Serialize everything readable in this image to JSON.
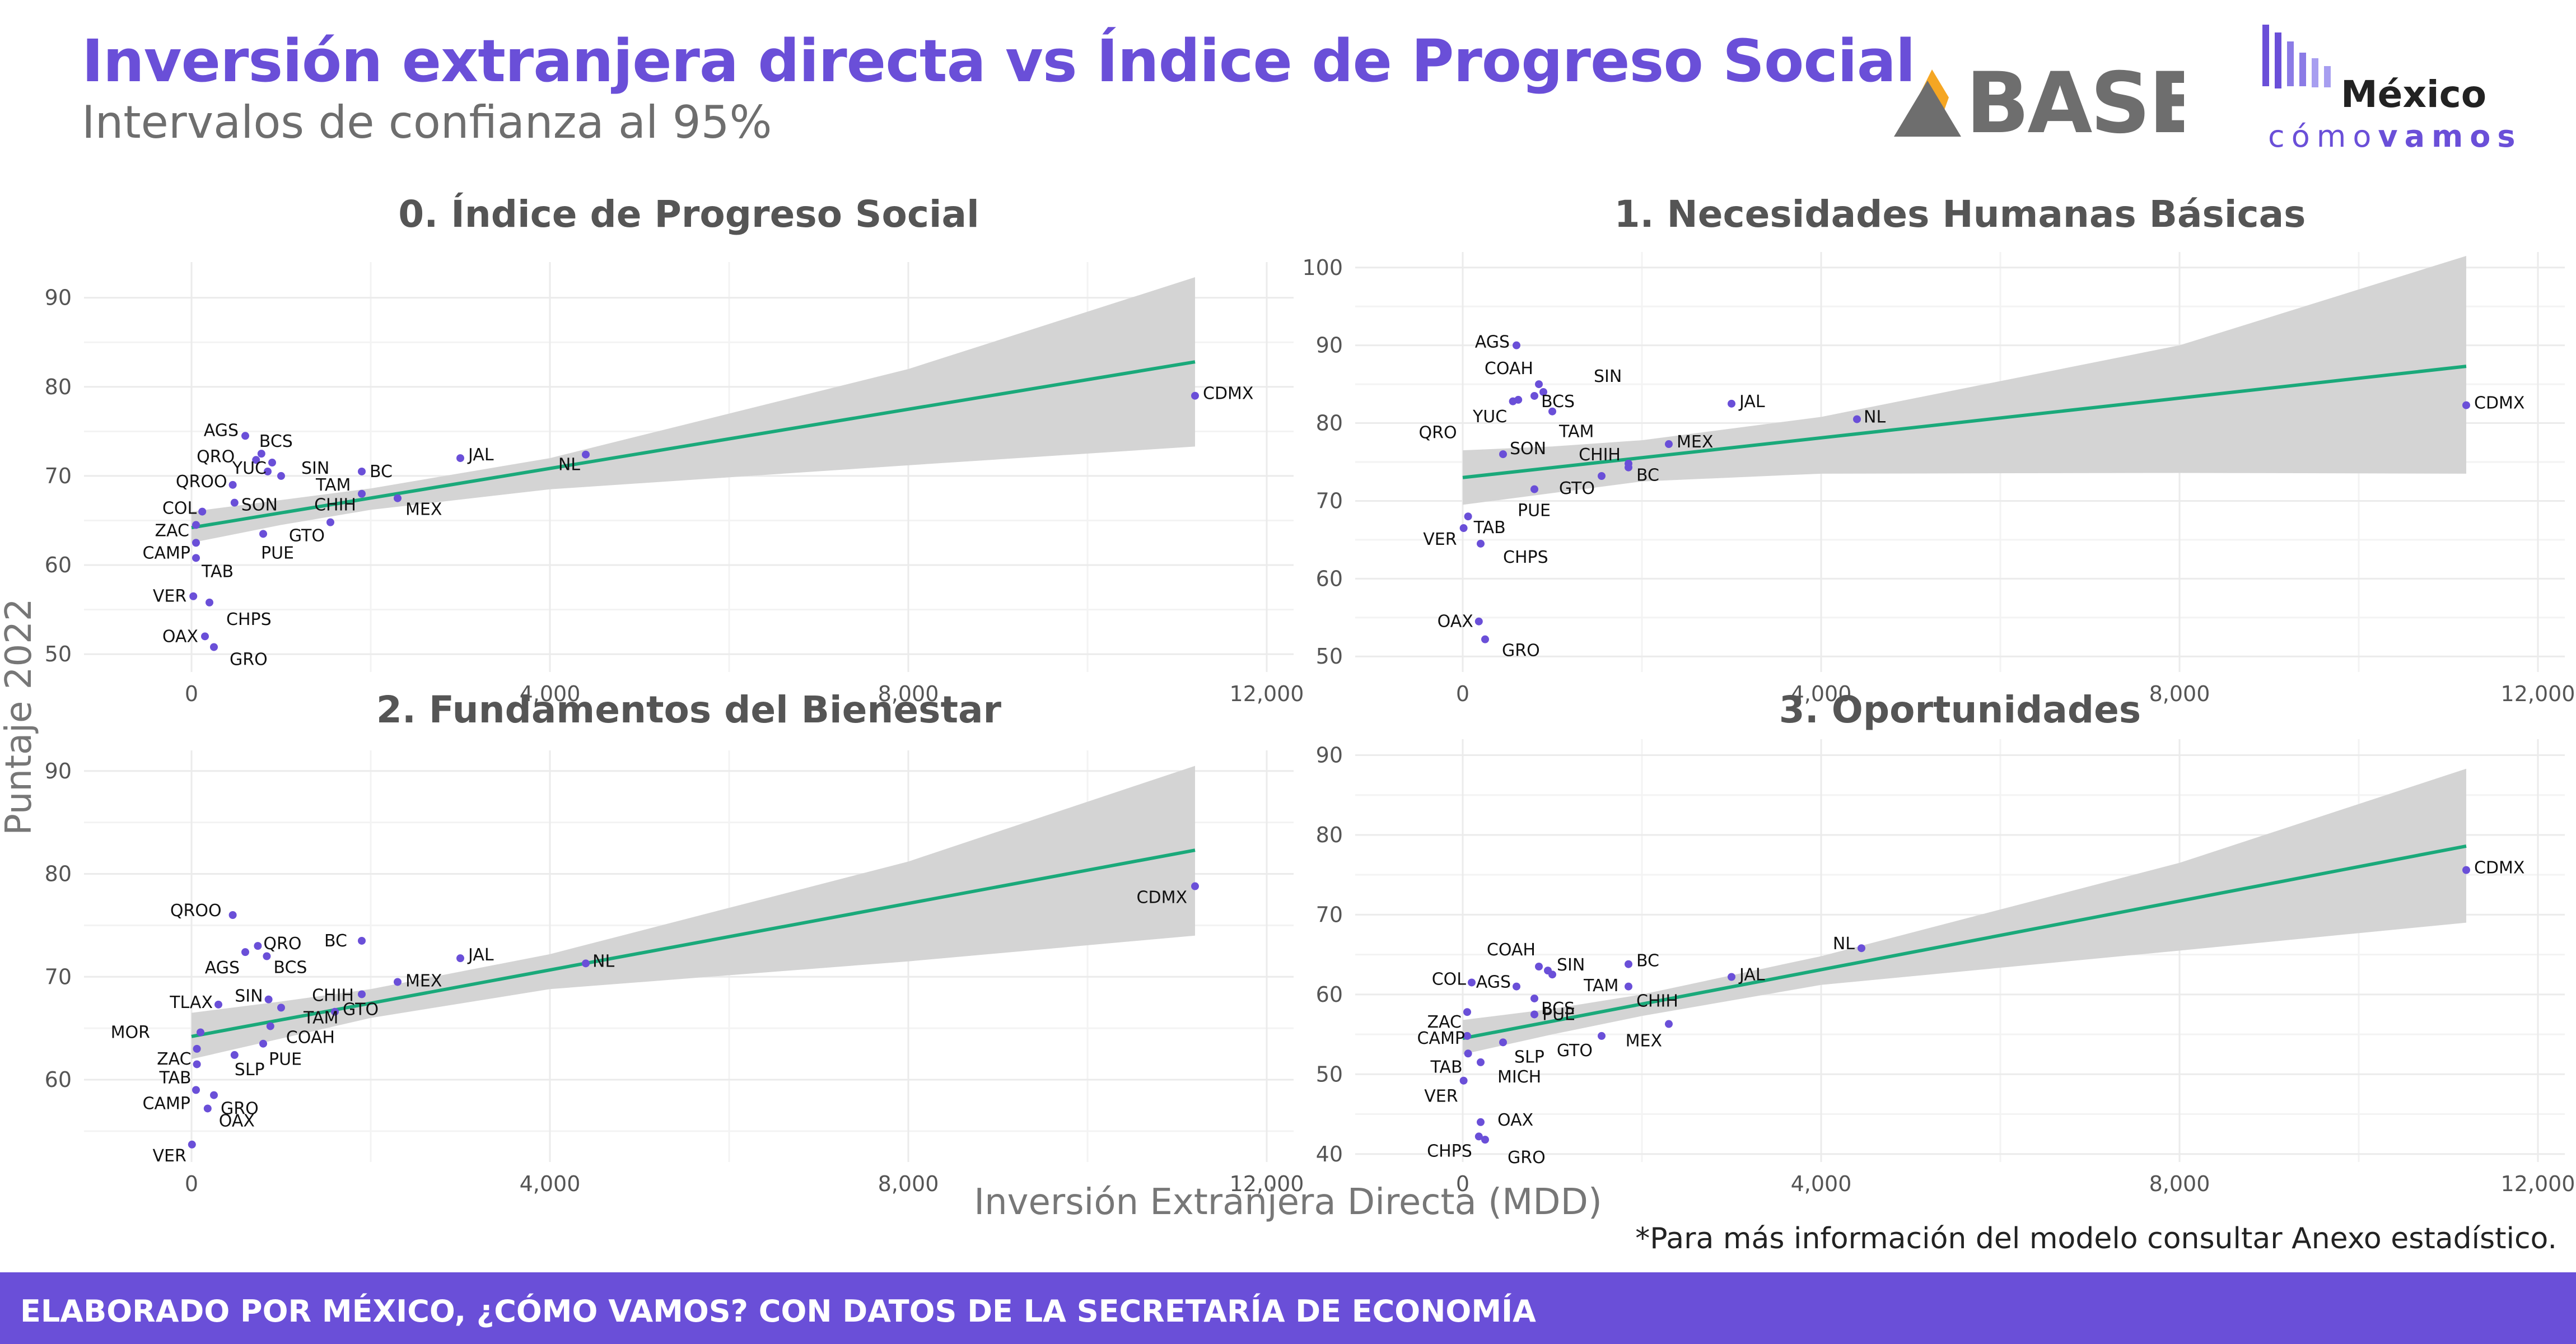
{
  "header": {
    "title": "Inversión extranjera directa vs Índice de Progreso Social",
    "subtitle": "Intervalos de confianza al 95%"
  },
  "logos": {
    "base": "BASE",
    "mcv_mexico": "México",
    "mcv_como": "cómo",
    "mcv_vamos": "vamos"
  },
  "axes": {
    "ylabel": "Puntaje 2022",
    "xlabel": "Inversión Extranjera Directa (MDD)"
  },
  "footnote": "*Para más información del modelo consultar Anexo estadístico.",
  "footer": "ELABORADO POR MÉXICO, ¿CÓMO VAMOS? CON DATOS DE LA SECRETARÍA DE ECONOMÍA",
  "colors": {
    "accent": "#6a4fd8",
    "points": "#6a4fd8",
    "fit_line": "#1aa97a",
    "confidence_band": "#d4d4d4",
    "grid": "#ebebeb",
    "title": "#6a4fd8",
    "base_logo_triangle": "#f5a623"
  },
  "chart_data": [
    {
      "type": "scatter",
      "title": "0. Índice de Progreso Social",
      "xlim": [
        -1200,
        12300
      ],
      "ylim": [
        48,
        94
      ],
      "xticks": [
        0,
        4000,
        8000,
        12000
      ],
      "yticks": [
        50,
        60,
        70,
        80,
        90
      ],
      "fit": {
        "x0": 0,
        "y0": 64.2,
        "x1": 11200,
        "y1": 82.8
      },
      "band": {
        "lo": [
          [
            0,
            62.5
          ],
          [
            1000,
            64.5
          ],
          [
            2000,
            66.2
          ],
          [
            4000,
            68.5
          ],
          [
            8000,
            71.2
          ],
          [
            11200,
            73.3
          ]
        ],
        "hi": [
          [
            0,
            66.0
          ],
          [
            1000,
            67.3
          ],
          [
            2000,
            68.6
          ],
          [
            4000,
            72.0
          ],
          [
            8000,
            82.0
          ],
          [
            11200,
            92.3
          ]
        ]
      },
      "points": [
        {
          "label": "CDMX",
          "x": 11200,
          "y": 79.0
        },
        {
          "label": "NL",
          "x": 4400,
          "y": 72.4
        },
        {
          "label": "JAL",
          "x": 3000,
          "y": 72.0
        },
        {
          "label": "MEX",
          "x": 2300,
          "y": 67.5
        },
        {
          "label": "CHIH",
          "x": 1900,
          "y": 68.0
        },
        {
          "label": "BC",
          "x": 1900,
          "y": 70.5
        },
        {
          "label": "GTO",
          "x": 1550,
          "y": 64.8
        },
        {
          "label": "AGS",
          "x": 600,
          "y": 74.5
        },
        {
          "label": "BCS",
          "x": 780,
          "y": 72.5
        },
        {
          "label": "QRO",
          "x": 720,
          "y": 71.8
        },
        {
          "label": "SIN",
          "x": 900,
          "y": 71.5
        },
        {
          "label": "YUC",
          "x": 850,
          "y": 70.5
        },
        {
          "label": "TAM",
          "x": 1000,
          "y": 70.0
        },
        {
          "label": "QROO",
          "x": 460,
          "y": 69.0
        },
        {
          "label": "SON",
          "x": 480,
          "y": 67.0
        },
        {
          "label": "COL",
          "x": 120,
          "y": 66.0
        },
        {
          "label": "ZAC",
          "x": 50,
          "y": 64.5
        },
        {
          "label": "PUE",
          "x": 800,
          "y": 63.5
        },
        {
          "label": "CAMP",
          "x": 50,
          "y": 62.5
        },
        {
          "label": "TAB",
          "x": 50,
          "y": 60.8
        },
        {
          "label": "VER",
          "x": 20,
          "y": 56.5
        },
        {
          "label": "CHPS",
          "x": 200,
          "y": 55.8
        },
        {
          "label": "OAX",
          "x": 150,
          "y": 52.0
        },
        {
          "label": "GRO",
          "x": 250,
          "y": 50.8
        }
      ]
    },
    {
      "type": "scatter",
      "title": "1. Necesidades Humanas Básicas",
      "xlim": [
        -1200,
        12300
      ],
      "ylim": [
        48,
        102
      ],
      "xticks": [
        0,
        4000,
        8000,
        12000
      ],
      "yticks": [
        50,
        60,
        70,
        80,
        90,
        100
      ],
      "fit": {
        "x0": 0,
        "y0": 73.0,
        "x1": 11200,
        "y1": 87.3
      },
      "band": {
        "lo": [
          [
            0,
            69.5
          ],
          [
            1000,
            71.0
          ],
          [
            2000,
            72.5
          ],
          [
            4000,
            73.5
          ],
          [
            8000,
            73.6
          ],
          [
            11200,
            73.5
          ]
        ],
        "hi": [
          [
            0,
            76.5
          ],
          [
            1000,
            77.0
          ],
          [
            2000,
            77.8
          ],
          [
            4000,
            80.8
          ],
          [
            8000,
            90.0
          ],
          [
            11200,
            101.5
          ]
        ]
      },
      "points": [
        {
          "label": "CDMX",
          "x": 11200,
          "y": 82.3
        },
        {
          "label": "NL",
          "x": 4400,
          "y": 80.5
        },
        {
          "label": "JAL",
          "x": 3000,
          "y": 82.5
        },
        {
          "label": "MEX",
          "x": 2300,
          "y": 77.3
        },
        {
          "label": "CHIH",
          "x": 1850,
          "y": 74.8
        },
        {
          "label": "BC",
          "x": 1850,
          "y": 74.3
        },
        {
          "label": "GTO",
          "x": 1550,
          "y": 73.2
        },
        {
          "label": "AGS",
          "x": 600,
          "y": 90.0
        },
        {
          "label": "COAH",
          "x": 850,
          "y": 85.0
        },
        {
          "label": "SIN",
          "x": 900,
          "y": 84.0
        },
        {
          "label": "BCS",
          "x": 800,
          "y": 83.5
        },
        {
          "label": "YUC",
          "x": 620,
          "y": 83.0
        },
        {
          "label": "QRO",
          "x": 560,
          "y": 82.8
        },
        {
          "label": "TAM",
          "x": 1000,
          "y": 81.5
        },
        {
          "label": "SON",
          "x": 450,
          "y": 76.0
        },
        {
          "label": "PUE",
          "x": 800,
          "y": 71.5
        },
        {
          "label": "TAB",
          "x": 60,
          "y": 68.0
        },
        {
          "label": "VER",
          "x": 10,
          "y": 66.5
        },
        {
          "label": "CHPS",
          "x": 200,
          "y": 64.5
        },
        {
          "label": "OAX",
          "x": 180,
          "y": 54.5
        },
        {
          "label": "GRO",
          "x": 250,
          "y": 52.2
        }
      ]
    },
    {
      "type": "scatter",
      "title": "2. Fundamentos del Bienestar",
      "xlim": [
        -1200,
        12300
      ],
      "ylim": [
        52,
        92
      ],
      "xticks": [
        0,
        4000,
        8000,
        12000
      ],
      "yticks": [
        60,
        70,
        80,
        90
      ],
      "fit": {
        "x0": 0,
        "y0": 64.2,
        "x1": 11200,
        "y1": 82.3
      },
      "band": {
        "lo": [
          [
            0,
            62.0
          ],
          [
            1000,
            64.0
          ],
          [
            2000,
            66.0
          ],
          [
            4000,
            68.8
          ],
          [
            8000,
            71.5
          ],
          [
            11200,
            74.0
          ]
        ],
        "hi": [
          [
            0,
            66.5
          ],
          [
            1000,
            67.6
          ],
          [
            2000,
            68.8
          ],
          [
            4000,
            72.2
          ],
          [
            8000,
            81.2
          ],
          [
            11200,
            90.5
          ]
        ]
      },
      "points": [
        {
          "label": "CDMX",
          "x": 11200,
          "y": 78.8
        },
        {
          "label": "NL",
          "x": 4400,
          "y": 71.3
        },
        {
          "label": "JAL",
          "x": 3000,
          "y": 71.8
        },
        {
          "label": "MEX",
          "x": 2300,
          "y": 69.5
        },
        {
          "label": "BC",
          "x": 1900,
          "y": 73.5
        },
        {
          "label": "CHIH",
          "x": 1900,
          "y": 68.3
        },
        {
          "label": "GTO",
          "x": 1600,
          "y": 66.6
        },
        {
          "label": "QROO",
          "x": 460,
          "y": 76.0
        },
        {
          "label": "QRO",
          "x": 740,
          "y": 73.0
        },
        {
          "label": "BCS",
          "x": 840,
          "y": 72.0
        },
        {
          "label": "AGS",
          "x": 600,
          "y": 72.4
        },
        {
          "label": "SIN",
          "x": 860,
          "y": 67.8
        },
        {
          "label": "TAM",
          "x": 1000,
          "y": 67.0
        },
        {
          "label": "COAH",
          "x": 880,
          "y": 65.2
        },
        {
          "label": "TLAX",
          "x": 300,
          "y": 67.3
        },
        {
          "label": "MOR",
          "x": 100,
          "y": 64.6
        },
        {
          "label": "PUE",
          "x": 800,
          "y": 63.5
        },
        {
          "label": "ZAC",
          "x": 60,
          "y": 63.0
        },
        {
          "label": "SLP",
          "x": 480,
          "y": 62.4
        },
        {
          "label": "TAB",
          "x": 60,
          "y": 61.5
        },
        {
          "label": "GRO",
          "x": 250,
          "y": 58.5
        },
        {
          "label": "CAMP",
          "x": 50,
          "y": 59.0
        },
        {
          "label": "OAX",
          "x": 180,
          "y": 57.2
        },
        {
          "label": "VER",
          "x": 5,
          "y": 53.7
        }
      ]
    },
    {
      "type": "scatter",
      "title": "3. Oportunidades",
      "xlim": [
        -1200,
        12300
      ],
      "ylim": [
        39,
        92
      ],
      "xticks": [
        0,
        4000,
        8000,
        12000
      ],
      "yticks": [
        40,
        50,
        60,
        70,
        80,
        90
      ],
      "fit": {
        "x0": 0,
        "y0": 54.5,
        "x1": 11200,
        "y1": 78.6
      },
      "band": {
        "lo": [
          [
            0,
            52.5
          ],
          [
            1000,
            55.0
          ],
          [
            2000,
            57.3
          ],
          [
            4000,
            61.2
          ],
          [
            8000,
            65.5
          ],
          [
            11200,
            69.0
          ]
        ],
        "hi": [
          [
            0,
            56.8
          ],
          [
            1000,
            58.2
          ],
          [
            2000,
            60.0
          ],
          [
            4000,
            64.8
          ],
          [
            8000,
            76.5
          ],
          [
            11200,
            88.3
          ]
        ]
      },
      "points": [
        {
          "label": "CDMX",
          "x": 11200,
          "y": 75.6
        },
        {
          "label": "NL",
          "x": 4450,
          "y": 65.8
        },
        {
          "label": "JAL",
          "x": 3000,
          "y": 62.2
        },
        {
          "label": "MEX",
          "x": 2300,
          "y": 56.3
        },
        {
          "label": "BC",
          "x": 1850,
          "y": 63.8
        },
        {
          "label": "CHIH",
          "x": 1850,
          "y": 61.0
        },
        {
          "label": "GTO",
          "x": 1550,
          "y": 54.8
        },
        {
          "label": "COAH",
          "x": 850,
          "y": 63.5
        },
        {
          "label": "SIN",
          "x": 950,
          "y": 63.0
        },
        {
          "label": "TAM",
          "x": 1000,
          "y": 62.5
        },
        {
          "label": "AGS",
          "x": 600,
          "y": 61.0
        },
        {
          "label": "COL",
          "x": 100,
          "y": 61.5
        },
        {
          "label": "BCS",
          "x": 800,
          "y": 59.5
        },
        {
          "label": "PUE",
          "x": 800,
          "y": 57.5
        },
        {
          "label": "ZAC",
          "x": 50,
          "y": 57.8
        },
        {
          "label": "CAMP",
          "x": 50,
          "y": 54.8
        },
        {
          "label": "SLP",
          "x": 450,
          "y": 54.0
        },
        {
          "label": "TAB",
          "x": 60,
          "y": 52.6
        },
        {
          "label": "MICH",
          "x": 200,
          "y": 51.5
        },
        {
          "label": "VER",
          "x": 10,
          "y": 49.2
        },
        {
          "label": "OAX",
          "x": 200,
          "y": 44.0
        },
        {
          "label": "CHPS",
          "x": 180,
          "y": 42.2
        },
        {
          "label": "GRO",
          "x": 250,
          "y": 41.8
        }
      ]
    }
  ]
}
